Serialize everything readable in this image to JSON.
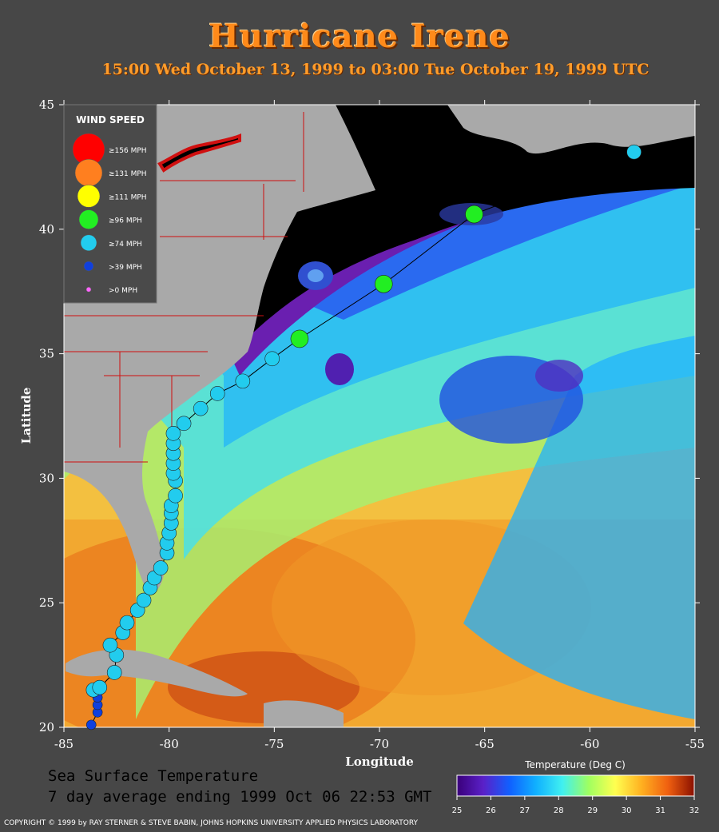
{
  "header": {
    "title": "Hurricane Irene",
    "subtitle": "15:00 Wed October 13, 1999 to 03:00 Tue October 19, 1999  UTC"
  },
  "axes": {
    "xlabel": "Longitude",
    "ylabel": "Latitude",
    "xlim": [
      -85,
      -55
    ],
    "ylim": [
      20,
      45
    ],
    "xticks": [
      "-85",
      "-80",
      "-75",
      "-70",
      "-65",
      "-60",
      "-55"
    ],
    "yticks": [
      "20",
      "25",
      "30",
      "35",
      "40",
      "45"
    ]
  },
  "legend": {
    "title": "WIND SPEED",
    "items": [
      {
        "label": "≥156 MPH",
        "color": "#ff0000"
      },
      {
        "label": "≥131 MPH",
        "color": "#ff7f1f"
      },
      {
        "label": "≥111 MPH",
        "color": "#ffff00"
      },
      {
        "label": "≥96 MPH",
        "color": "#22ee22"
      },
      {
        "label": "≥74 MPH",
        "color": "#22ccee"
      },
      {
        "label": ">39 MPH",
        "color": "#1040dd"
      },
      {
        "label": ">0 MPH",
        "color": "#ff66ff"
      }
    ]
  },
  "track": [
    {
      "lon": -83.7,
      "lat": 20.1,
      "cat": ">39 MPH"
    },
    {
      "lon": -83.4,
      "lat": 20.6,
      "cat": ">39 MPH"
    },
    {
      "lon": -83.4,
      "lat": 20.9,
      "cat": ">39 MPH"
    },
    {
      "lon": -83.4,
      "lat": 21.2,
      "cat": ">39 MPH"
    },
    {
      "lon": -83.6,
      "lat": 21.5,
      "cat": "≥74 MPH"
    },
    {
      "lon": -83.3,
      "lat": 21.6,
      "cat": "≥74 MPH"
    },
    {
      "lon": -82.6,
      "lat": 22.2,
      "cat": "≥74 MPH"
    },
    {
      "lon": -82.5,
      "lat": 22.9,
      "cat": "≥74 MPH"
    },
    {
      "lon": -82.8,
      "lat": 23.3,
      "cat": "≥74 MPH"
    },
    {
      "lon": -82.2,
      "lat": 23.8,
      "cat": "≥74 MPH"
    },
    {
      "lon": -82.0,
      "lat": 24.2,
      "cat": "≥74 MPH"
    },
    {
      "lon": -81.5,
      "lat": 24.7,
      "cat": "≥74 MPH"
    },
    {
      "lon": -81.2,
      "lat": 25.1,
      "cat": "≥74 MPH"
    },
    {
      "lon": -80.9,
      "lat": 25.6,
      "cat": "≥74 MPH"
    },
    {
      "lon": -80.7,
      "lat": 26.0,
      "cat": "≥74 MPH"
    },
    {
      "lon": -80.4,
      "lat": 26.4,
      "cat": "≥74 MPH"
    },
    {
      "lon": -80.1,
      "lat": 27.0,
      "cat": "≥74 MPH"
    },
    {
      "lon": -80.1,
      "lat": 27.4,
      "cat": "≥74 MPH"
    },
    {
      "lon": -80.0,
      "lat": 27.8,
      "cat": "≥74 MPH"
    },
    {
      "lon": -79.9,
      "lat": 28.2,
      "cat": "≥74 MPH"
    },
    {
      "lon": -79.9,
      "lat": 28.6,
      "cat": "≥74 MPH"
    },
    {
      "lon": -79.9,
      "lat": 28.9,
      "cat": "≥74 MPH"
    },
    {
      "lon": -79.7,
      "lat": 29.3,
      "cat": "≥74 MPH"
    },
    {
      "lon": -79.7,
      "lat": 29.9,
      "cat": "≥74 MPH"
    },
    {
      "lon": -79.8,
      "lat": 30.2,
      "cat": "≥74 MPH"
    },
    {
      "lon": -79.8,
      "lat": 30.6,
      "cat": "≥74 MPH"
    },
    {
      "lon": -79.8,
      "lat": 31.0,
      "cat": "≥74 MPH"
    },
    {
      "lon": -79.8,
      "lat": 31.4,
      "cat": "≥74 MPH"
    },
    {
      "lon": -79.8,
      "lat": 31.8,
      "cat": "≥74 MPH"
    },
    {
      "lon": -79.3,
      "lat": 32.2,
      "cat": "≥74 MPH"
    },
    {
      "lon": -78.5,
      "lat": 32.8,
      "cat": "≥74 MPH"
    },
    {
      "lon": -77.7,
      "lat": 33.4,
      "cat": "≥74 MPH"
    },
    {
      "lon": -76.5,
      "lat": 33.9,
      "cat": "≥74 MPH"
    },
    {
      "lon": -75.1,
      "lat": 34.8,
      "cat": "≥74 MPH"
    },
    {
      "lon": -73.8,
      "lat": 35.6,
      "cat": "≥96 MPH"
    },
    {
      "lon": -69.8,
      "lat": 37.8,
      "cat": "≥96 MPH"
    },
    {
      "lon": -65.5,
      "lat": 40.6,
      "cat": "≥96 MPH"
    },
    {
      "lon": -57.9,
      "lat": 43.1,
      "cat": "≥74 MPH"
    }
  ],
  "colorbar": {
    "title": "Temperature (Deg C)",
    "ticks": [
      "25",
      "26",
      "27",
      "28",
      "29",
      "30",
      "31",
      "32"
    ],
    "colors": [
      "#3a007a",
      "#5a20c8",
      "#1060ff",
      "#10b0ff",
      "#40f0f0",
      "#a0ff60",
      "#ffff50",
      "#ffb020",
      "#f06010",
      "#8a1000"
    ]
  },
  "caption": {
    "line1": "Sea Surface Temperature",
    "line2": "7 day average ending 1999 Oct 06 22:53 GMT"
  },
  "copyright": "COPYRIGHT © 1999 by RAY STERNER & STEVE BABIN, JOHNS HOPKINS UNIVERSITY APPLIED PHYSICS LABORATORY",
  "colors": {
    "background": "#474747",
    "title": "#ff8a1a",
    "land": "#a9a9a9",
    "deep_ocean": "#000000",
    "track_line": "#000000"
  }
}
